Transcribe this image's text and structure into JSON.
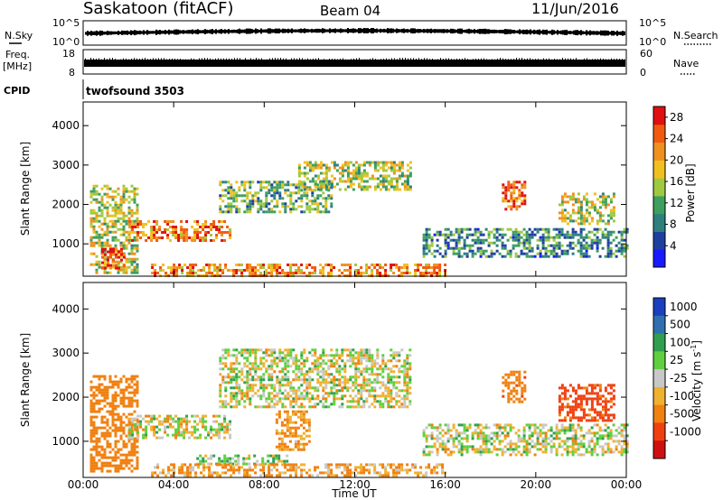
{
  "header": {
    "station": "Saskatoon (fitACF)",
    "beam": "Beam 04",
    "date": "11/Jun/2016"
  },
  "top_panels": {
    "nsky_label": "N.Sky",
    "nsky_ticks": [
      "10^5",
      "10^0"
    ],
    "nsearch_label": "N.Search",
    "nsearch_ticks": [
      "10^5",
      "10^0"
    ],
    "freq_label_1": "Freq.",
    "freq_label_2": "[MHz]",
    "freq_ticks": [
      "18",
      "8"
    ],
    "nave_label": "Nave",
    "nave_ticks": [
      "60",
      "0"
    ],
    "cpid_label": "CPID",
    "cpid_value": "twofsound 3503"
  },
  "colors": {
    "power_scale": [
      "#1a1aff",
      "#1f3f9f",
      "#2f7f7f",
      "#3f9f5f",
      "#9fc93f",
      "#f0c020",
      "#f09020",
      "#f05a10",
      "#e01010"
    ],
    "velocity_scale": [
      "#1a3fbf",
      "#2f6faf",
      "#2f9f4f",
      "#5fcf3f",
      "#c8c8c8",
      "#f0b030",
      "#f08010",
      "#f04010",
      "#d01010"
    ]
  },
  "chart_data": [
    {
      "type": "heatmap",
      "title": "",
      "xlabel": "Time UT",
      "ylabel": "Slant Range [km]",
      "x_ticks": [
        "00:00",
        "04:00",
        "08:00",
        "12:00",
        "16:00",
        "20:00",
        "00:00"
      ],
      "xlim_hours": [
        0,
        24
      ],
      "y_ticks": [
        1000,
        2000,
        3000,
        4000
      ],
      "ylim": [
        180,
        4600
      ],
      "colorbar": {
        "label": "Power [dB]",
        "ticks": [
          "4",
          "8",
          "12",
          "16",
          "20",
          "24",
          "28"
        ],
        "range": [
          0,
          30
        ]
      },
      "echo_regions": [
        {
          "t": [
            0.3,
            2.4
          ],
          "r": [
            300,
            2500
          ],
          "level": 0.55
        },
        {
          "t": [
            0.8,
            1.8
          ],
          "r": [
            400,
            900
          ],
          "level": 0.95
        },
        {
          "t": [
            2.0,
            6.5
          ],
          "r": [
            1100,
            1600
          ],
          "level": 0.8
        },
        {
          "t": [
            6.0,
            11.0
          ],
          "r": [
            1800,
            2600
          ],
          "level": 0.4
        },
        {
          "t": [
            9.5,
            14.5
          ],
          "r": [
            2400,
            3100
          ],
          "level": 0.5
        },
        {
          "t": [
            3.0,
            16.0
          ],
          "r": [
            200,
            500
          ],
          "level": 0.75
        },
        {
          "t": [
            15.0,
            24.0
          ],
          "r": [
            700,
            1400
          ],
          "level": 0.3
        },
        {
          "t": [
            18.5,
            19.5
          ],
          "r": [
            1900,
            2600
          ],
          "level": 0.85
        },
        {
          "t": [
            21.0,
            23.5
          ],
          "r": [
            1500,
            2300
          ],
          "level": 0.55
        }
      ]
    },
    {
      "type": "heatmap",
      "title": "",
      "xlabel": "Time UT",
      "ylabel": "Slant Range [km]",
      "x_ticks": [
        "00:00",
        "04:00",
        "08:00",
        "12:00",
        "16:00",
        "20:00",
        "00:00"
      ],
      "xlim_hours": [
        0,
        24
      ],
      "y_ticks": [
        1000,
        2000,
        3000,
        4000
      ],
      "ylim": [
        180,
        4600
      ],
      "colorbar": {
        "label": "Velocity [m s",
        "label_sup": "-1",
        "label_end": "]",
        "ticks": [
          "1000",
          "500",
          "100",
          "25",
          "-25",
          "-100",
          "-500",
          "-1000"
        ]
      },
      "echo_regions": [
        {
          "t": [
            0.3,
            2.4
          ],
          "r": [
            300,
            2500
          ],
          "velocity": -300
        },
        {
          "t": [
            2.0,
            6.5
          ],
          "r": [
            1100,
            1600
          ],
          "velocity": 0
        },
        {
          "t": [
            5.0,
            9.0
          ],
          "r": [
            500,
            700
          ],
          "velocity": 80
        },
        {
          "t": [
            8.5,
            10.0
          ],
          "r": [
            800,
            1700
          ],
          "velocity": -150
        },
        {
          "t": [
            6.0,
            14.5
          ],
          "r": [
            1800,
            3100
          ],
          "velocity": 0
        },
        {
          "t": [
            3.0,
            16.0
          ],
          "r": [
            200,
            500
          ],
          "velocity": -120
        },
        {
          "t": [
            15.0,
            24.0
          ],
          "r": [
            700,
            1400
          ],
          "velocity": 0
        },
        {
          "t": [
            18.5,
            19.5
          ],
          "r": [
            1900,
            2600
          ],
          "velocity": -400
        },
        {
          "t": [
            21.0,
            23.5
          ],
          "r": [
            1500,
            2300
          ],
          "velocity": -600
        }
      ]
    }
  ]
}
